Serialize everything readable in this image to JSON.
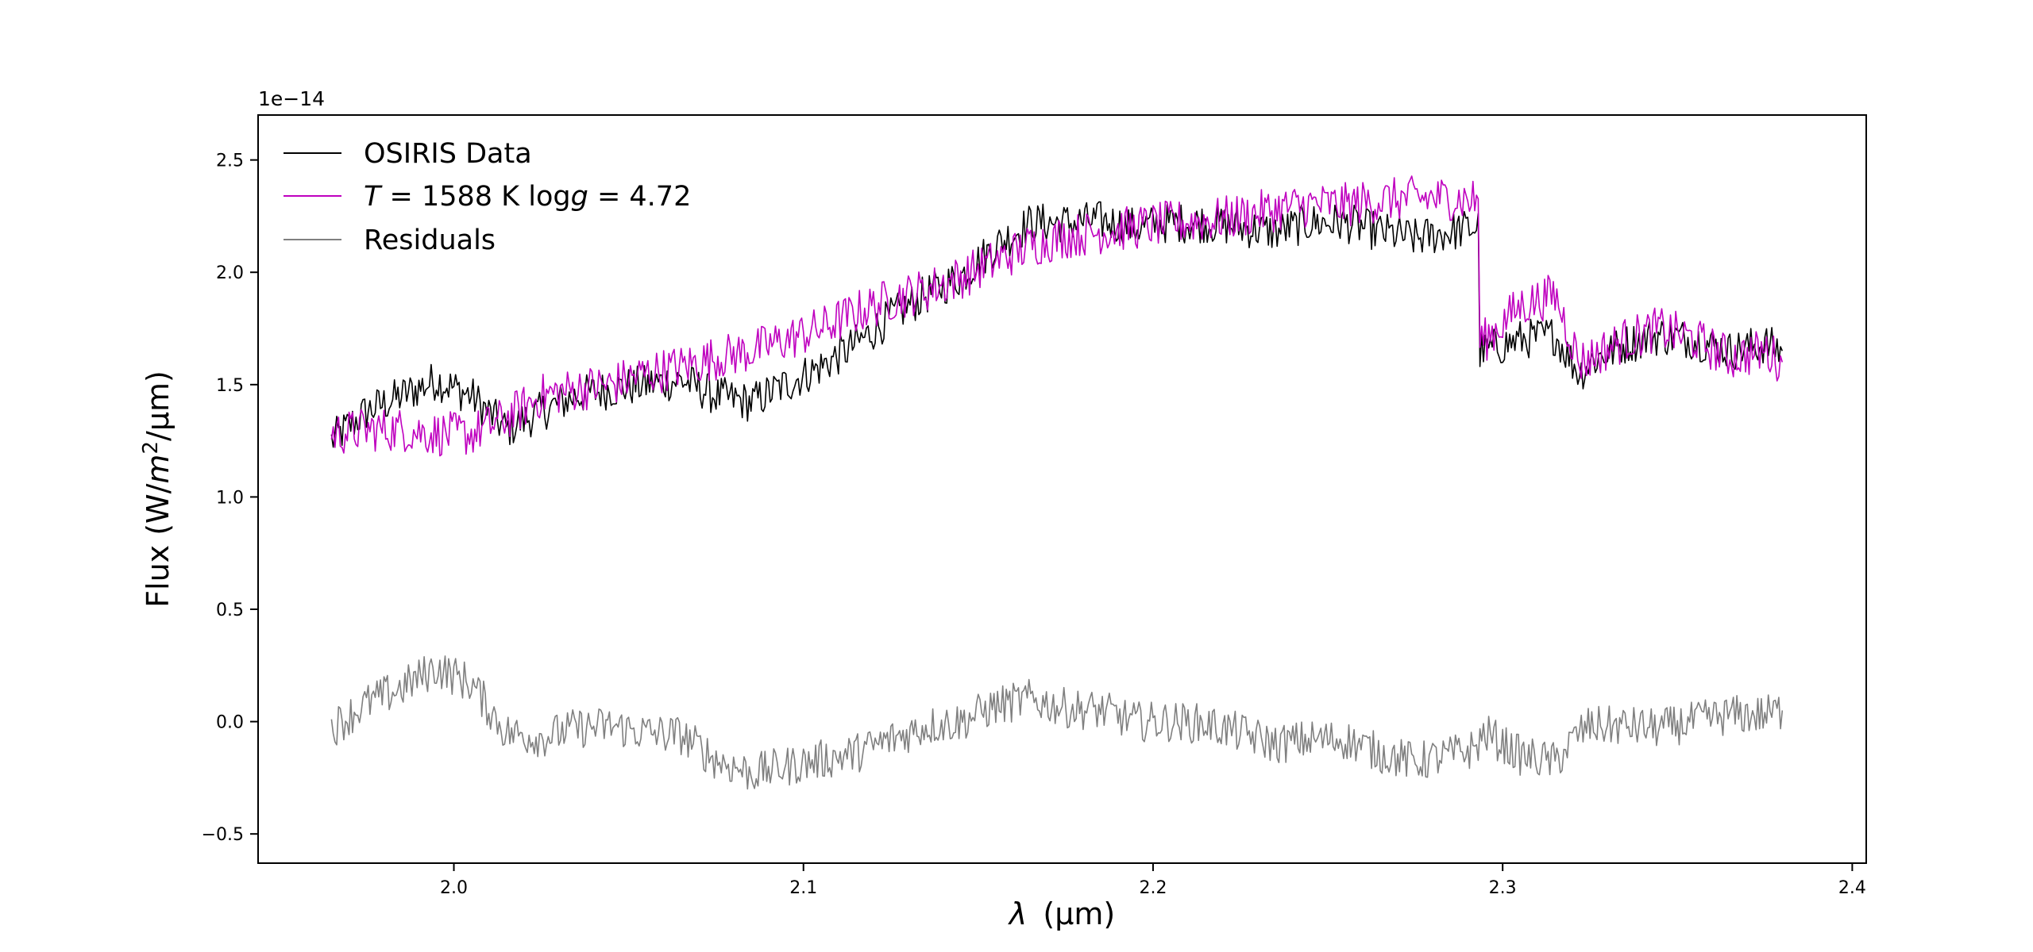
{
  "chart_data": {
    "type": "line",
    "xlabel_symbol": "λ",
    "xlabel_unit": "(μm)",
    "ylabel_main": "Flux (W/",
    "ylabel_m": "m",
    "ylabel_exp": "2",
    "ylabel_end": "/μm)",
    "y_offset_label": "1e−14",
    "xlim": [
      1.944,
      2.404
    ],
    "ylim": [
      -0.63,
      2.7
    ],
    "y_scale_factor": 1e-14,
    "x_ticks": [
      2.0,
      2.1,
      2.2,
      2.3,
      2.4
    ],
    "x_tick_labels": [
      "2.0",
      "2.1",
      "2.2",
      "2.3",
      "2.4"
    ],
    "y_ticks": [
      -0.5,
      0.0,
      0.5,
      1.0,
      1.5,
      2.0,
      2.5
    ],
    "y_tick_labels": [
      "−0.5",
      "0.0",
      "0.5",
      "1.0",
      "1.5",
      "2.0",
      "2.5"
    ],
    "legend": {
      "placement": "upper-left",
      "entries": [
        {
          "label": "OSIRIS Data",
          "color": "#000000"
        },
        {
          "label_T": "T",
          "label_mid": " = 1588 K log",
          "label_g": "g",
          "label_end": " = 4.72",
          "color": "#bf00bf"
        },
        {
          "label": "Residuals",
          "color": "#808080"
        }
      ]
    },
    "series": [
      {
        "name": "OSIRIS Data",
        "color": "#000000",
        "x": [
          1.965,
          1.975,
          1.985,
          1.995,
          2.005,
          2.015,
          2.025,
          2.035,
          2.045,
          2.055,
          2.065,
          2.075,
          2.085,
          2.095,
          2.105,
          2.115,
          2.125,
          2.135,
          2.145,
          2.155,
          2.165,
          2.175,
          2.185,
          2.195,
          2.205,
          2.215,
          2.225,
          2.235,
          2.245,
          2.255,
          2.265,
          2.275,
          2.285,
          2.292,
          2.295,
          2.305,
          2.315,
          2.322,
          2.325,
          2.335,
          2.345,
          2.355,
          2.365,
          2.375,
          2.38
        ],
        "y": [
          1.25,
          1.38,
          1.45,
          1.52,
          1.45,
          1.3,
          1.38,
          1.45,
          1.48,
          1.5,
          1.52,
          1.45,
          1.42,
          1.5,
          1.58,
          1.68,
          1.8,
          1.9,
          1.98,
          2.12,
          2.22,
          2.22,
          2.23,
          2.2,
          2.22,
          2.22,
          2.2,
          2.18,
          2.22,
          2.22,
          2.18,
          2.15,
          2.18,
          2.2,
          1.65,
          1.7,
          1.72,
          1.55,
          1.6,
          1.68,
          1.72,
          1.7,
          1.65,
          1.68,
          1.65
        ]
      },
      {
        "name": "T = 1588 K logg = 4.72",
        "color": "#bf00bf",
        "x": [
          1.965,
          1.975,
          1.985,
          1.995,
          2.005,
          2.015,
          2.025,
          2.035,
          2.045,
          2.055,
          2.065,
          2.075,
          2.085,
          2.095,
          2.105,
          2.115,
          2.125,
          2.135,
          2.145,
          2.155,
          2.165,
          2.175,
          2.185,
          2.195,
          2.205,
          2.215,
          2.225,
          2.235,
          2.245,
          2.255,
          2.265,
          2.275,
          2.285,
          2.292,
          2.295,
          2.305,
          2.315,
          2.322,
          2.325,
          2.335,
          2.345,
          2.355,
          2.365,
          2.375,
          2.38
        ],
        "y": [
          1.28,
          1.3,
          1.3,
          1.28,
          1.28,
          1.35,
          1.45,
          1.48,
          1.5,
          1.55,
          1.58,
          1.62,
          1.65,
          1.7,
          1.75,
          1.82,
          1.88,
          1.92,
          1.98,
          2.05,
          2.12,
          2.16,
          2.18,
          2.2,
          2.22,
          2.23,
          2.25,
          2.28,
          2.3,
          2.3,
          2.32,
          2.33,
          2.33,
          2.32,
          1.7,
          1.85,
          1.9,
          1.6,
          1.62,
          1.7,
          1.75,
          1.7,
          1.62,
          1.65,
          1.6
        ]
      },
      {
        "name": "Residuals",
        "color": "#808080",
        "x": [
          1.965,
          1.975,
          1.985,
          1.995,
          2.005,
          2.015,
          2.025,
          2.035,
          2.045,
          2.055,
          2.065,
          2.075,
          2.085,
          2.095,
          2.105,
          2.115,
          2.125,
          2.135,
          2.145,
          2.155,
          2.165,
          2.175,
          2.185,
          2.195,
          2.205,
          2.215,
          2.225,
          2.235,
          2.245,
          2.255,
          2.265,
          2.275,
          2.285,
          2.292,
          2.295,
          2.305,
          2.315,
          2.322,
          2.325,
          2.335,
          2.345,
          2.355,
          2.365,
          2.375,
          2.38
        ],
        "y": [
          -0.03,
          0.08,
          0.15,
          0.24,
          0.17,
          -0.05,
          -0.07,
          -0.03,
          -0.02,
          -0.05,
          -0.06,
          -0.17,
          -0.23,
          -0.2,
          -0.17,
          -0.14,
          -0.08,
          -0.02,
          0.0,
          0.07,
          0.1,
          0.06,
          0.05,
          0.0,
          0.0,
          -0.01,
          -0.05,
          -0.1,
          -0.08,
          -0.08,
          -0.14,
          -0.18,
          -0.15,
          -0.12,
          -0.05,
          -0.15,
          -0.18,
          -0.05,
          -0.02,
          -0.02,
          -0.03,
          0.0,
          0.03,
          0.03,
          0.05
        ]
      }
    ]
  }
}
